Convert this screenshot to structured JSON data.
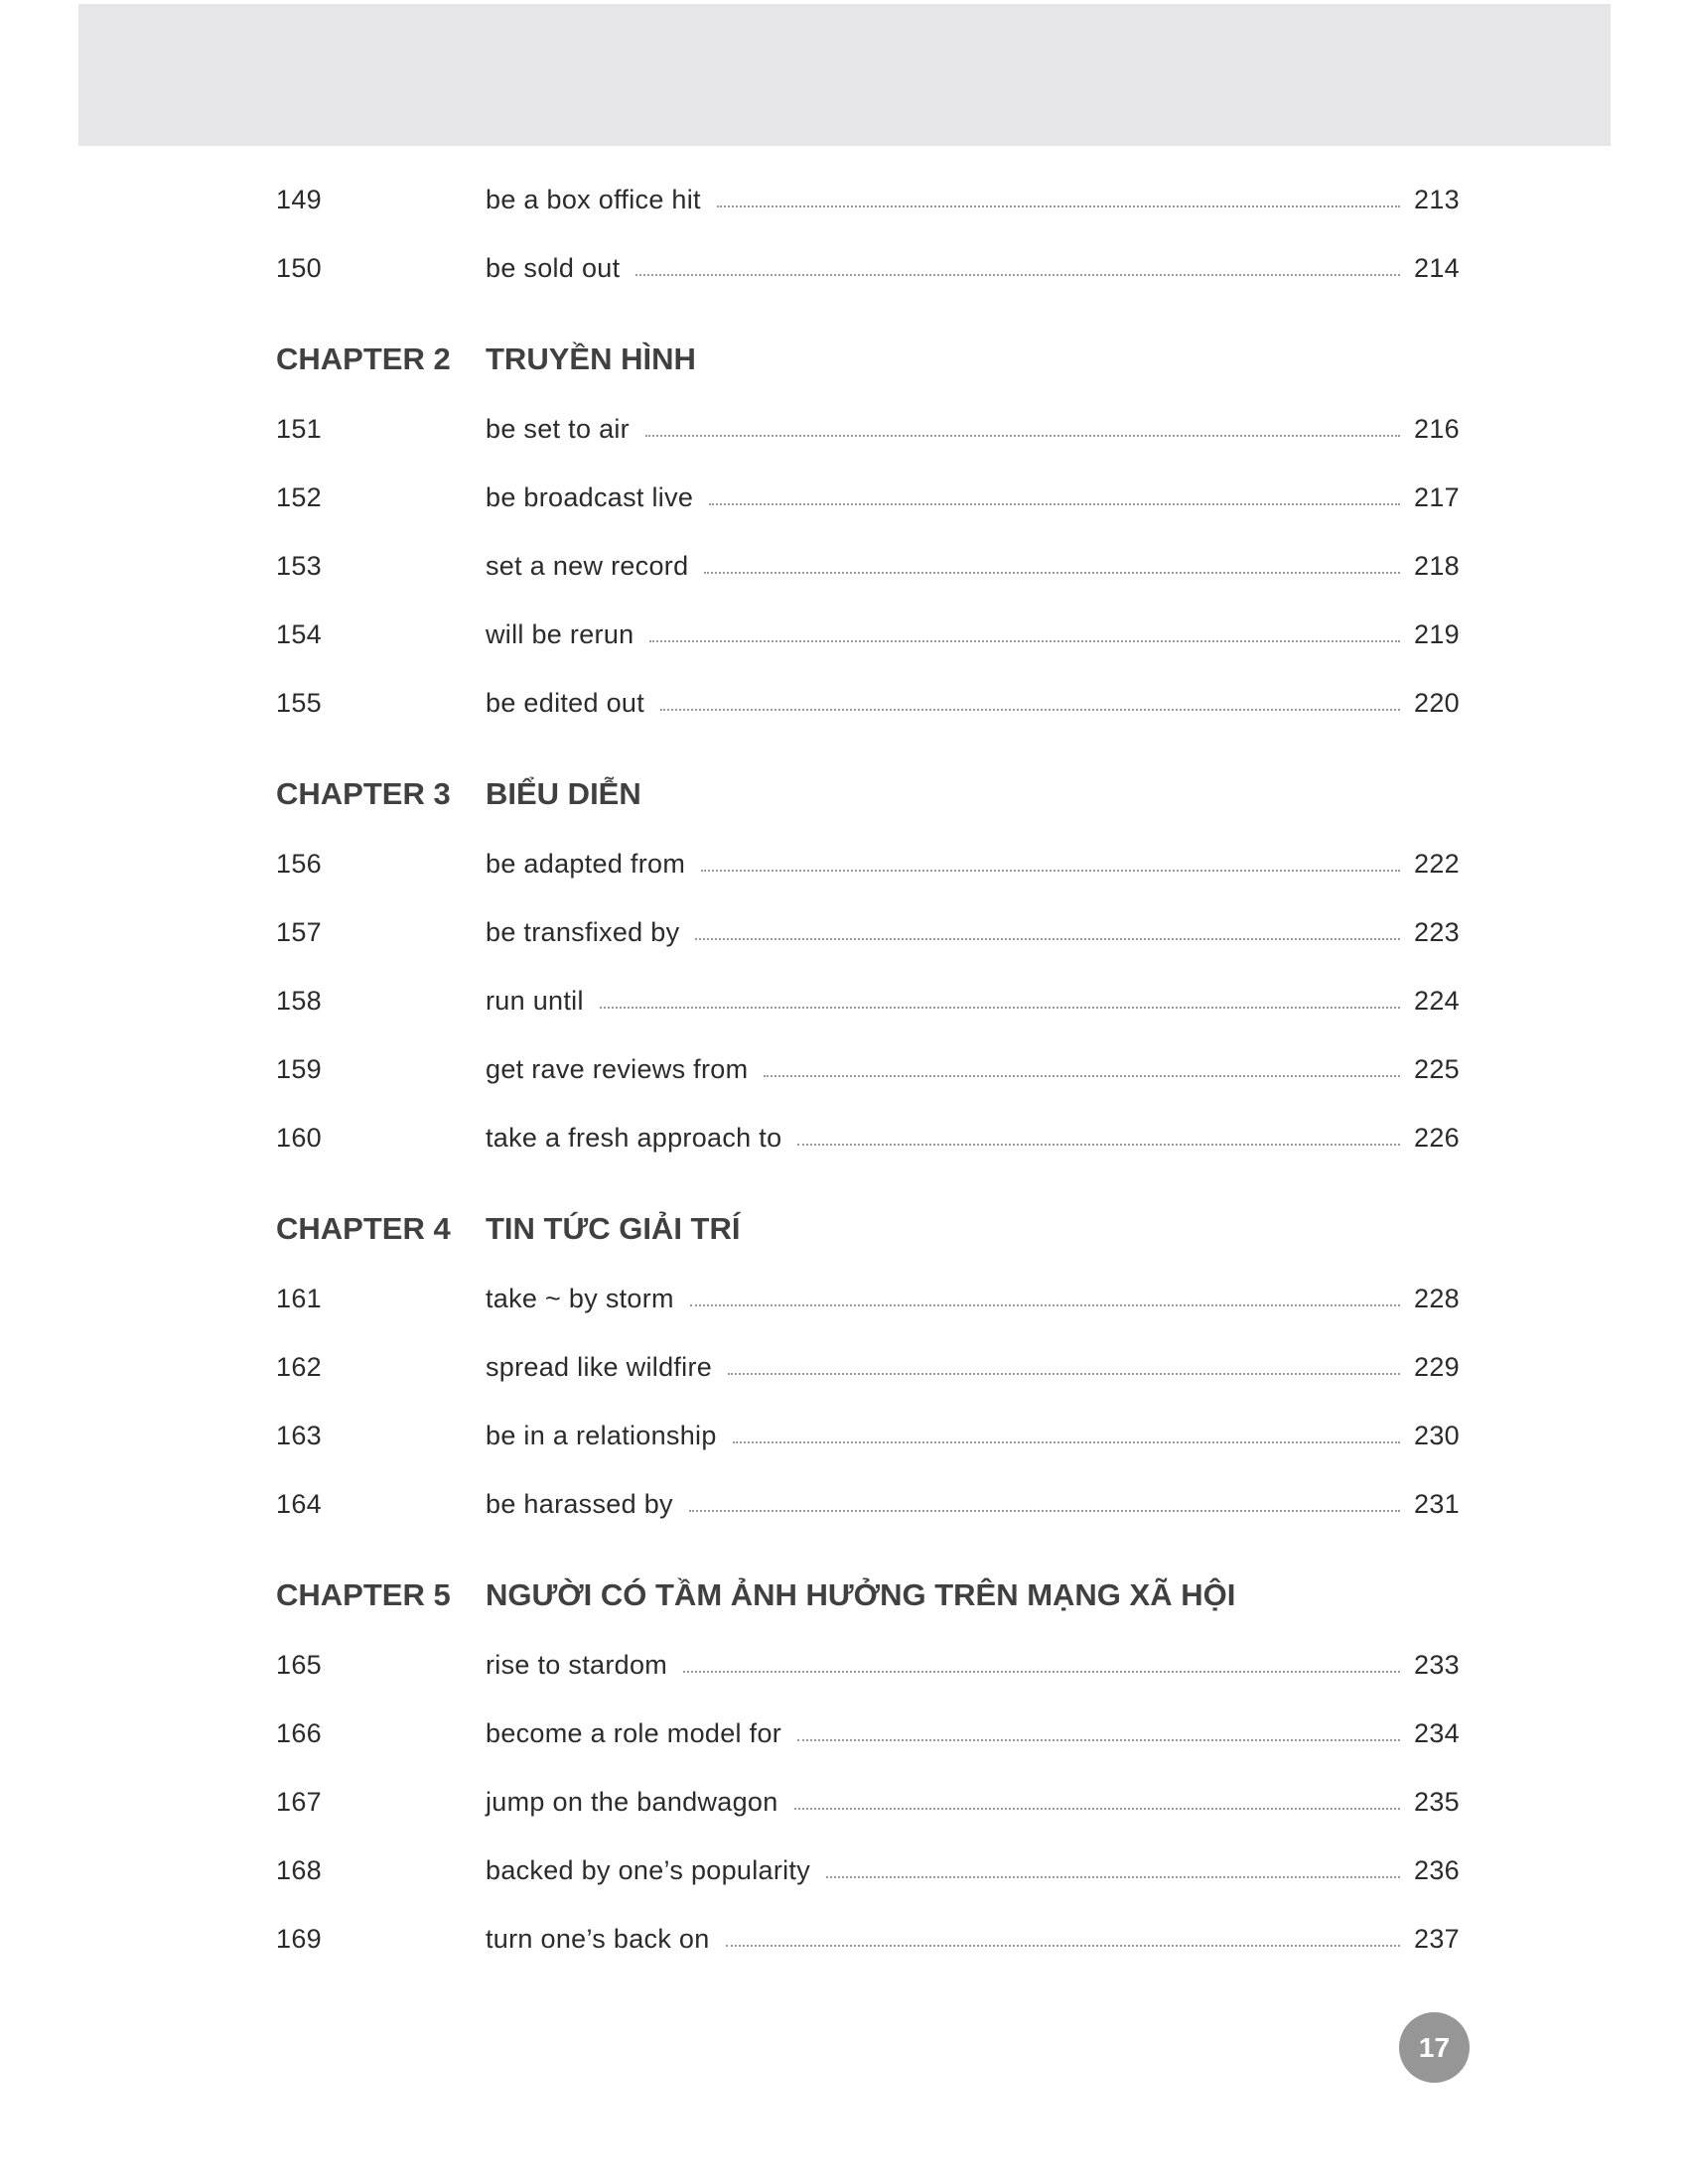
{
  "sections": [
    {
      "chapter": null,
      "items": [
        {
          "num": "149",
          "title": "be a box office hit",
          "page": "213"
        },
        {
          "num": "150",
          "title": "be sold out",
          "page": "214"
        }
      ]
    },
    {
      "chapter": {
        "label": "CHAPTER 2",
        "title": "TRUYỀN HÌNH"
      },
      "items": [
        {
          "num": "151",
          "title": "be set to air",
          "page": "216"
        },
        {
          "num": "152",
          "title": "be broadcast live",
          "page": "217"
        },
        {
          "num": "153",
          "title": "set a new record",
          "page": "218"
        },
        {
          "num": "154",
          "title": "will be rerun",
          "page": "219"
        },
        {
          "num": "155",
          "title": "be edited out",
          "page": "220"
        }
      ]
    },
    {
      "chapter": {
        "label": "CHAPTER 3",
        "title": "BIỂU DIỄN"
      },
      "items": [
        {
          "num": "156",
          "title": "be adapted from",
          "page": "222"
        },
        {
          "num": "157",
          "title": "be transfixed by",
          "page": "223"
        },
        {
          "num": "158",
          "title": "run until",
          "page": "224"
        },
        {
          "num": "159",
          "title": "get rave reviews from",
          "page": "225"
        },
        {
          "num": "160",
          "title": "take a fresh approach to",
          "page": "226"
        }
      ]
    },
    {
      "chapter": {
        "label": "CHAPTER 4",
        "title": "TIN TỨC GIẢI TRÍ"
      },
      "items": [
        {
          "num": "161",
          "title": "take ~ by storm",
          "page": "228"
        },
        {
          "num": "162",
          "title": "spread like wildfire",
          "page": "229"
        },
        {
          "num": "163",
          "title": "be in a relationship",
          "page": "230"
        },
        {
          "num": "164",
          "title": "be harassed by",
          "page": "231"
        }
      ]
    },
    {
      "chapter": {
        "label": "CHAPTER 5",
        "title": "NGƯỜI CÓ TẦM ẢNH HƯỞNG TRÊN MẠNG XÃ HỘI"
      },
      "items": [
        {
          "num": "165",
          "title": "rise to stardom",
          "page": "233"
        },
        {
          "num": "166",
          "title": "become a role model for",
          "page": "234"
        },
        {
          "num": "167",
          "title": "jump on the bandwagon",
          "page": "235"
        },
        {
          "num": "168",
          "title": "backed by one’s popularity",
          "page": "236"
        },
        {
          "num": "169",
          "title": "turn one’s back on",
          "page": "237"
        }
      ]
    }
  ],
  "page_number": "17",
  "colors": {
    "header_band": "#e6e6e8",
    "page_badge": "#969696",
    "text": "#2b2b2b"
  }
}
